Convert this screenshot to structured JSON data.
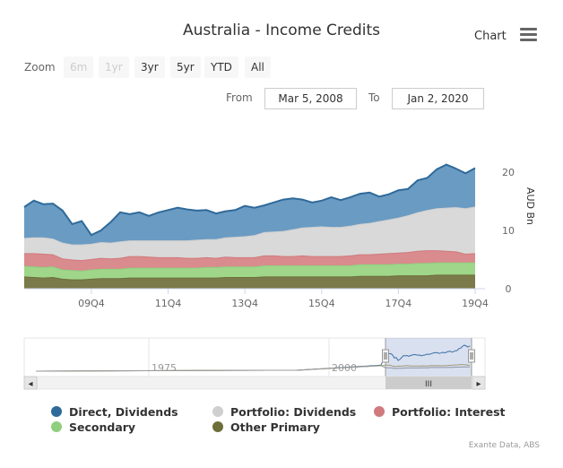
{
  "chart_data": {
    "type": "area",
    "stacked": true,
    "title": "Australia - Income Credits",
    "ylabel": "AUD Bn",
    "ylim": [
      0,
      20
    ],
    "yticks": [
      0,
      10,
      20
    ],
    "xtick_labels": [
      "09Q4",
      "11Q4",
      "13Q4",
      "15Q4",
      "17Q4",
      "19Q4"
    ],
    "categories": [
      "08Q1",
      "08Q2",
      "08Q3",
      "08Q4",
      "09Q1",
      "09Q2",
      "09Q3",
      "09Q4",
      "10Q1",
      "10Q2",
      "10Q3",
      "10Q4",
      "11Q1",
      "11Q2",
      "11Q3",
      "11Q4",
      "12Q1",
      "12Q2",
      "12Q3",
      "12Q4",
      "13Q1",
      "13Q2",
      "13Q3",
      "13Q4",
      "14Q1",
      "14Q2",
      "14Q3",
      "14Q4",
      "15Q1",
      "15Q2",
      "15Q3",
      "15Q4",
      "16Q1",
      "16Q2",
      "16Q3",
      "16Q4",
      "17Q1",
      "17Q2",
      "17Q3",
      "17Q4",
      "18Q1",
      "18Q2",
      "18Q3",
      "18Q4",
      "19Q1",
      "19Q2",
      "19Q3",
      "19Q4"
    ],
    "series": [
      {
        "name": "Other Primary",
        "color": "#7a7a4a",
        "values": [
          2.1,
          2.0,
          1.9,
          2.0,
          1.7,
          1.6,
          1.6,
          1.7,
          1.8,
          1.8,
          1.8,
          1.9,
          1.9,
          1.9,
          1.9,
          1.9,
          1.9,
          1.9,
          1.9,
          1.9,
          1.9,
          2.0,
          2.0,
          2.0,
          2.0,
          2.1,
          2.1,
          2.1,
          2.1,
          2.1,
          2.1,
          2.1,
          2.1,
          2.1,
          2.1,
          2.2,
          2.2,
          2.2,
          2.2,
          2.3,
          2.3,
          2.3,
          2.3,
          2.4,
          2.4,
          2.4,
          2.4,
          2.4
        ]
      },
      {
        "name": "Secondary",
        "color": "#9fd68a",
        "values": [
          1.8,
          1.8,
          1.8,
          1.8,
          1.6,
          1.6,
          1.5,
          1.6,
          1.6,
          1.6,
          1.6,
          1.7,
          1.7,
          1.7,
          1.7,
          1.7,
          1.7,
          1.7,
          1.7,
          1.8,
          1.8,
          1.8,
          1.8,
          1.8,
          1.8,
          1.9,
          1.9,
          1.9,
          1.9,
          1.9,
          1.9,
          1.9,
          1.9,
          1.9,
          1.9,
          2.0,
          2.0,
          2.0,
          2.0,
          2.0,
          2.0,
          2.1,
          2.1,
          2.1,
          2.1,
          2.1,
          2.1,
          2.1
        ]
      },
      {
        "name": "Portfolio: Interest",
        "color": "#d98b8e",
        "values": [
          2.2,
          2.3,
          2.3,
          2.1,
          1.9,
          1.8,
          1.8,
          1.8,
          1.9,
          1.8,
          1.9,
          2.0,
          2.0,
          1.9,
          1.8,
          1.8,
          1.8,
          1.7,
          1.7,
          1.7,
          1.6,
          1.7,
          1.6,
          1.6,
          1.6,
          1.7,
          1.7,
          1.6,
          1.6,
          1.7,
          1.6,
          1.6,
          1.6,
          1.6,
          1.7,
          1.7,
          1.7,
          1.8,
          1.9,
          1.9,
          2.0,
          2.1,
          2.2,
          2.1,
          2.0,
          1.9,
          1.5,
          1.6
        ]
      },
      {
        "name": "Portfolio: Dividends",
        "color": "#d9d9d9",
        "values": [
          2.6,
          2.7,
          2.8,
          2.7,
          2.7,
          2.6,
          2.7,
          2.6,
          2.7,
          2.7,
          2.8,
          2.7,
          2.7,
          2.8,
          2.9,
          2.9,
          2.9,
          3.0,
          3.1,
          3.1,
          3.2,
          3.3,
          3.5,
          3.6,
          3.8,
          4.0,
          4.1,
          4.3,
          4.6,
          4.8,
          5.0,
          5.1,
          5.0,
          5.0,
          5.1,
          5.2,
          5.4,
          5.6,
          5.8,
          6.0,
          6.3,
          6.6,
          6.9,
          7.2,
          7.4,
          7.6,
          7.8,
          8.0
        ]
      },
      {
        "name": "Direct, Dividends",
        "color": "#6a9bc3",
        "values": [
          5.3,
          6.3,
          5.7,
          6.0,
          5.5,
          3.5,
          4.0,
          1.5,
          2.0,
          3.5,
          5.0,
          4.5,
          4.8,
          4.2,
          4.8,
          5.2,
          5.6,
          5.3,
          5.0,
          5.0,
          4.4,
          4.5,
          4.6,
          5.2,
          4.7,
          4.6,
          5.0,
          5.4,
          5.3,
          4.8,
          4.2,
          4.4,
          5.1,
          4.6,
          4.9,
          5.2,
          5.2,
          4.2,
          4.3,
          4.7,
          4.5,
          5.5,
          5.5,
          6.7,
          7.4,
          6.6,
          6.0,
          6.6
        ]
      }
    ],
    "legend_position": "bottom",
    "grid": false,
    "source": "Exante Data, ABS"
  },
  "header": {
    "menu_label": "Chart"
  },
  "zoom": {
    "label": "Zoom",
    "buttons": [
      "6m",
      "1yr",
      "3yr",
      "5yr",
      "YTD",
      "All"
    ],
    "disabled": [
      true,
      true,
      false,
      false,
      false,
      false
    ]
  },
  "range": {
    "from_label": "From",
    "from_value": "Mar 5, 2008",
    "to_label": "To",
    "to_value": "Jan 2, 2020"
  },
  "navigator": {
    "labels": [
      "1975",
      "2000"
    ],
    "scroll_grip": "III",
    "arrow_left": "◂",
    "arrow_right": "▸"
  },
  "legend": {
    "items": [
      {
        "label": "Direct, Dividends",
        "color": "#2f6a99"
      },
      {
        "label": "Portfolio: Dividends",
        "color": "#cfcfcf"
      },
      {
        "label": "Portfolio: Interest",
        "color": "#d07a7d"
      },
      {
        "label": "Secondary",
        "color": "#8fcf7e"
      },
      {
        "label": "Other Primary",
        "color": "#6e6e3a"
      }
    ]
  },
  "credits": "Exante Data, ABS"
}
